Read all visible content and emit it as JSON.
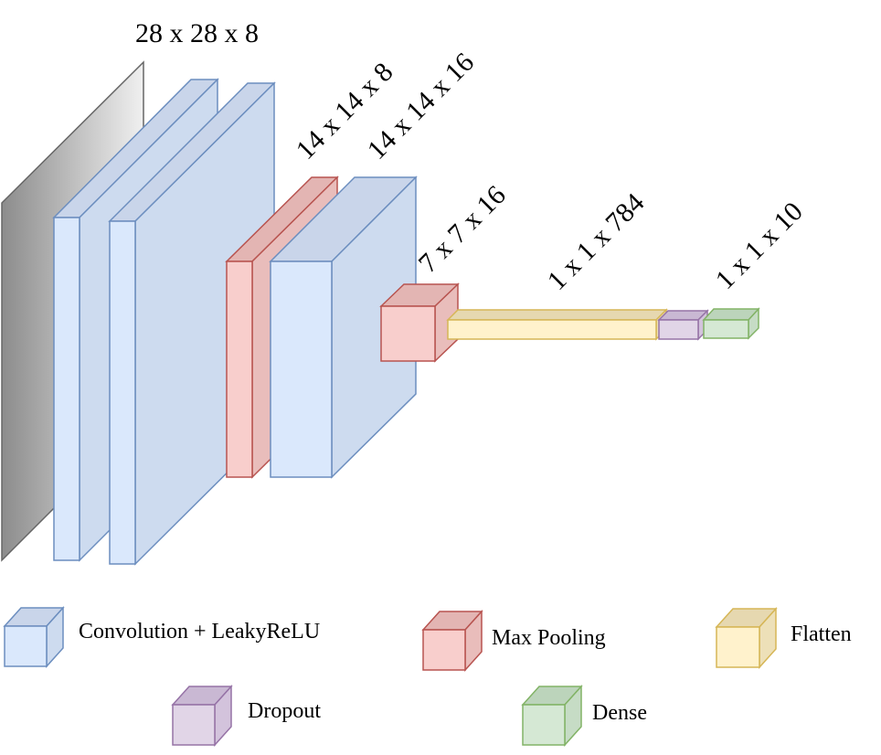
{
  "diagram": {
    "labels": {
      "input_dims": "28 x 28 x 8",
      "conv2_dims": "14 x 14 x 8",
      "conv3_dims": "14 x 14 x 16",
      "pool_dims": "7 x 7 x 16",
      "flatten_dims": "1 x 1 x 784",
      "dense_dims": "1 x 1 x 10"
    }
  },
  "legend": {
    "conv": "Convolution + LeakyReLU",
    "maxpool": "Max Pooling",
    "flatten": "Flatten",
    "dropout": "Dropout",
    "dense": "Dense"
  },
  "colors": {
    "conv_fill": "#dae8fc",
    "conv_top": "#c9d5ea",
    "conv_side": "#cddbef",
    "conv_stroke": "#6c8ebf",
    "pool_fill": "#f8cecc",
    "pool_top": "#e3b5b3",
    "pool_side": "#e9bdbb",
    "pool_stroke": "#b85450",
    "flatten_fill": "#fff2cc",
    "flatten_top": "#e6d8b0",
    "flatten_stroke": "#d6b656",
    "dropout_fill": "#e1d5e7",
    "dropout_top": "#c9b8d3",
    "dropout_stroke": "#9673a6",
    "dense_fill": "#d5e8d4",
    "dense_top": "#bcd4bb",
    "dense_stroke": "#82b366",
    "input_stroke": "#666666"
  }
}
